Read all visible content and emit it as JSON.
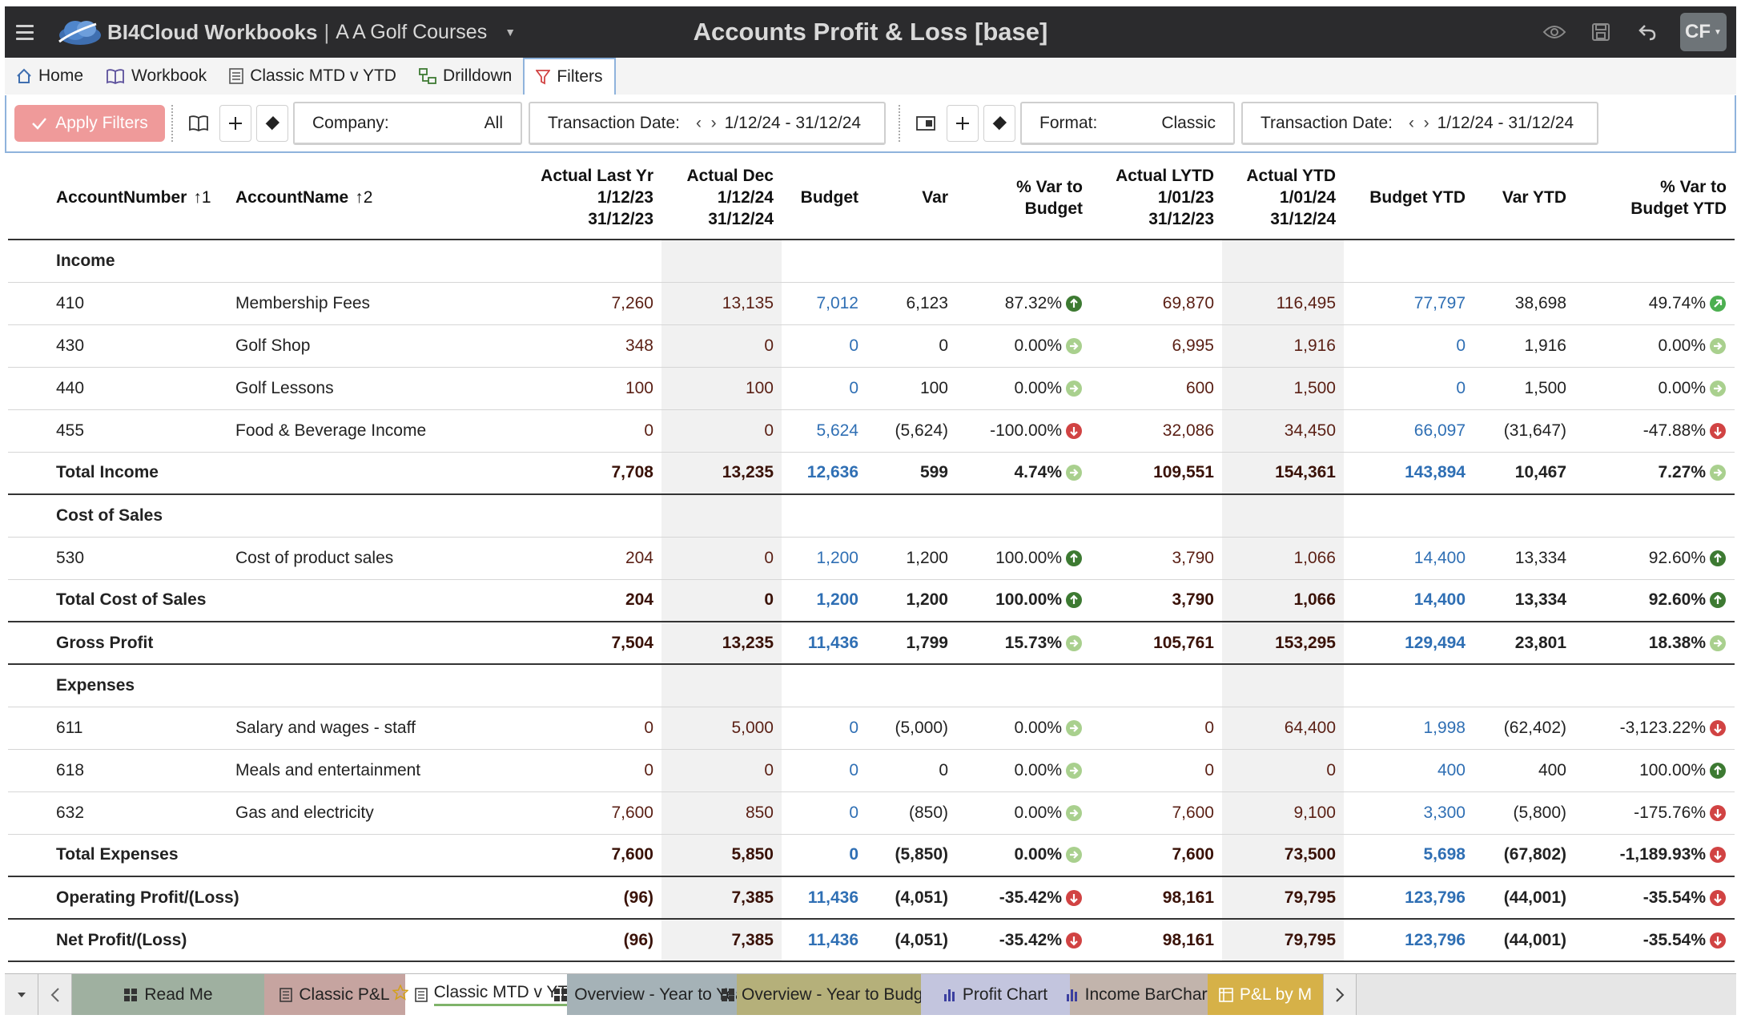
{
  "titlebar": {
    "app_name": "BI4Cloud Workbooks",
    "separator": "|",
    "company": "A A Golf Courses",
    "doc_title": "Accounts Profit & Loss [base]",
    "user_initials": "CF",
    "icons": [
      "menu-icon",
      "cloud-logo-icon",
      "eye-icon",
      "save-icon",
      "undo-icon",
      "chevron-down-icon"
    ]
  },
  "nav": {
    "tabs": [
      {
        "label": "Home",
        "icon": "home-icon"
      },
      {
        "label": "Workbook",
        "icon": "book-icon"
      },
      {
        "label": "Classic MTD v YTD",
        "icon": "sheet-icon"
      },
      {
        "label": "Drilldown",
        "icon": "drilldown-icon"
      },
      {
        "label": "Filters",
        "icon": "filter-icon",
        "active": true
      }
    ]
  },
  "filters": {
    "apply_label": "Apply Filters",
    "company": {
      "label": "Company:",
      "value": "All"
    },
    "transaction_date_1": {
      "label": "Transaction Date:",
      "value": "1/12/24 - 31/12/24"
    },
    "format": {
      "label": "Format:",
      "value": "Classic"
    },
    "transaction_date_2": {
      "label": "Transaction Date:",
      "value": "1/12/24 - 31/12/24"
    }
  },
  "table": {
    "headers": {
      "account_number": "AccountNumber",
      "account_number_sort": "1",
      "account_name": "AccountName",
      "account_name_sort": "2",
      "actual_last_yr": [
        "Actual Last Yr",
        "1/12/23",
        "31/12/23"
      ],
      "actual_dec": [
        "Actual Dec",
        "1/12/24",
        "31/12/24"
      ],
      "budget": "Budget",
      "var": "Var",
      "pct_var_budget": [
        "% Var to",
        "Budget"
      ],
      "actual_lytd": [
        "Actual LYTD",
        "1/01/23",
        "31/12/23"
      ],
      "actual_ytd": [
        "Actual YTD",
        "1/01/24",
        "31/12/24"
      ],
      "budget_ytd": "Budget YTD",
      "var_ytd": "Var YTD",
      "pct_var_budget_ytd": [
        "% Var to",
        "Budget YTD"
      ]
    },
    "rows": [
      {
        "type": "section",
        "num": "Income",
        "name": "",
        "c": [
          "",
          "",
          "",
          "",
          "",
          "",
          "",
          "",
          "",
          ""
        ],
        "s1": "",
        "s2": ""
      },
      {
        "type": "data",
        "num": "410",
        "name": "Membership Fees",
        "c": [
          "7,260",
          "13,135",
          "7,012",
          "6,123",
          "87.32%",
          "69,870",
          "116,495",
          "77,797",
          "38,698",
          "49.74%"
        ],
        "s1": "up",
        "s2": "up-light"
      },
      {
        "type": "data",
        "num": "430",
        "name": "Golf Shop",
        "c": [
          "348",
          "0",
          "0",
          "0",
          "0.00%",
          "6,995",
          "1,916",
          "0",
          "1,916",
          "0.00%"
        ],
        "s1": "flat",
        "s2": "flat"
      },
      {
        "type": "data",
        "num": "440",
        "name": "Golf Lessons",
        "c": [
          "100",
          "100",
          "0",
          "100",
          "0.00%",
          "600",
          "1,500",
          "0",
          "1,500",
          "0.00%"
        ],
        "s1": "flat",
        "s2": "flat"
      },
      {
        "type": "data",
        "num": "455",
        "name": "Food & Beverage Income",
        "c": [
          "0",
          "0",
          "5,624",
          "(5,624)",
          "-100.00%",
          "32,086",
          "34,450",
          "66,097",
          "(31,647)",
          "-47.88%"
        ],
        "s1": "down",
        "s2": "down"
      },
      {
        "type": "total",
        "num": "Total Income",
        "name": "",
        "c": [
          "7,708",
          "13,235",
          "12,636",
          "599",
          "4.74%",
          "109,551",
          "154,361",
          "143,894",
          "10,467",
          "7.27%"
        ],
        "s1": "flat",
        "s2": "flat"
      },
      {
        "type": "section",
        "num": "Cost of Sales",
        "name": "",
        "c": [
          "",
          "",
          "",
          "",
          "",
          "",
          "",
          "",
          "",
          ""
        ],
        "s1": "",
        "s2": ""
      },
      {
        "type": "data",
        "num": "530",
        "name": "Cost of product sales",
        "c": [
          "204",
          "0",
          "1,200",
          "1,200",
          "100.00%",
          "3,790",
          "1,066",
          "14,400",
          "13,334",
          "92.60%"
        ],
        "s1": "up",
        "s2": "up"
      },
      {
        "type": "total",
        "num": "Total Cost of Sales",
        "name": "",
        "c": [
          "204",
          "0",
          "1,200",
          "1,200",
          "100.00%",
          "3,790",
          "1,066",
          "14,400",
          "13,334",
          "92.60%"
        ],
        "s1": "up",
        "s2": "up"
      },
      {
        "type": "total",
        "num": "Gross Profit",
        "name": "",
        "c": [
          "7,504",
          "13,235",
          "11,436",
          "1,799",
          "15.73%",
          "105,761",
          "153,295",
          "129,494",
          "23,801",
          "18.38%"
        ],
        "s1": "flat",
        "s2": "flat"
      },
      {
        "type": "section",
        "num": "Expenses",
        "name": "",
        "c": [
          "",
          "",
          "",
          "",
          "",
          "",
          "",
          "",
          "",
          ""
        ],
        "s1": "",
        "s2": ""
      },
      {
        "type": "data",
        "num": "611",
        "name": "Salary and wages - staff",
        "c": [
          "0",
          "5,000",
          "0",
          "(5,000)",
          "0.00%",
          "0",
          "64,400",
          "1,998",
          "(62,402)",
          "-3,123.22%"
        ],
        "s1": "flat",
        "s2": "down"
      },
      {
        "type": "data",
        "num": "618",
        "name": "Meals and entertainment",
        "c": [
          "0",
          "0",
          "0",
          "0",
          "0.00%",
          "0",
          "0",
          "400",
          "400",
          "100.00%"
        ],
        "s1": "flat",
        "s2": "up"
      },
      {
        "type": "data",
        "num": "632",
        "name": "Gas and electricity",
        "c": [
          "7,600",
          "850",
          "0",
          "(850)",
          "0.00%",
          "7,600",
          "9,100",
          "3,300",
          "(5,800)",
          "-175.76%"
        ],
        "s1": "flat",
        "s2": "down"
      },
      {
        "type": "total",
        "num": "Total Expenses",
        "name": "",
        "c": [
          "7,600",
          "5,850",
          "0",
          "(5,850)",
          "0.00%",
          "7,600",
          "73,500",
          "5,698",
          "(67,802)",
          "-1,189.93%"
        ],
        "s1": "flat",
        "s2": "down"
      },
      {
        "type": "total",
        "num": "Operating Profit/(Loss)",
        "name": "",
        "c": [
          "(96)",
          "7,385",
          "11,436",
          "(4,051)",
          "-35.42%",
          "98,161",
          "79,795",
          "123,796",
          "(44,001)",
          "-35.54%"
        ],
        "s1": "down",
        "s2": "down"
      },
      {
        "type": "total",
        "num": "Net Profit/(Loss)",
        "name": "",
        "c": [
          "(96)",
          "7,385",
          "11,436",
          "(4,051)",
          "-35.42%",
          "98,161",
          "79,795",
          "123,796",
          "(44,001)",
          "-35.54%"
        ],
        "s1": "down",
        "s2": "down"
      }
    ]
  },
  "sheets": {
    "tabs": [
      {
        "label": "Read Me",
        "color": "#9fb0a0",
        "icon": "grid-icon"
      },
      {
        "label": "Classic P&L",
        "color": "#c6a4a0",
        "icon": "sheet-icon"
      },
      {
        "label": "Classic MTD v YTD",
        "color": "#ffffff",
        "icon": "sheet-icon",
        "active": true
      },
      {
        "label": "Overview - Year to Year",
        "color": "#a5b2b7",
        "icon": "grid-icon"
      },
      {
        "label": "Overview - Year to Budget",
        "color": "#b5b07a",
        "icon": "grid-icon"
      },
      {
        "label": "Profit Chart",
        "color": "#c3c5de",
        "icon": "bar-chart-icon"
      },
      {
        "label": "Income BarChart",
        "color": "#c2b4ac",
        "icon": "bar-chart-icon"
      },
      {
        "label": "P&L by M",
        "color": "#d6b148",
        "icon": "pivot-icon"
      }
    ]
  },
  "colors": {
    "titlebar_bg": "#2b2b2d",
    "apply_bg": "#ef9a9a",
    "budget_blue": "#2f6fb4",
    "actual_brown": "#5a1f14",
    "status_up": "#3d7a32",
    "status_down": "#d14343",
    "status_flat": "#a9d08e"
  }
}
